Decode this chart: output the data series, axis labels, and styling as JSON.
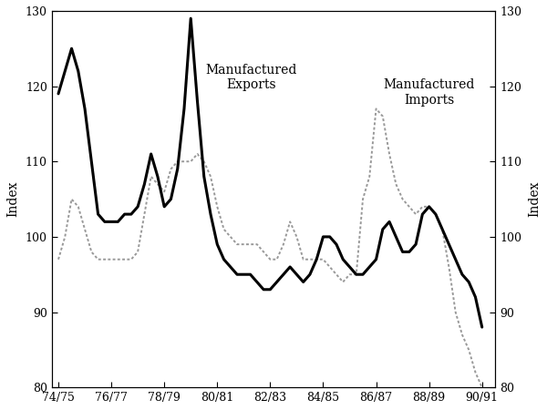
{
  "ylabel_left": "Index",
  "ylabel_right": "Index",
  "ylim": [
    80,
    130
  ],
  "yticks": [
    80,
    90,
    100,
    110,
    120,
    130
  ],
  "x_labels": [
    "74/75",
    "76/77",
    "78/79",
    "80/81",
    "82/83",
    "84/85",
    "86/87",
    "88/89",
    "90/91"
  ],
  "annotation_exports": "Manufactured\nExports",
  "annotation_imports": "Manufactured\nImports",
  "exports_x": [
    74.5,
    74.75,
    75.0,
    75.25,
    75.5,
    75.75,
    76.0,
    76.25,
    76.5,
    76.75,
    77.0,
    77.25,
    77.5,
    77.75,
    78.0,
    78.25,
    78.5,
    78.75,
    79.0,
    79.25,
    79.5,
    79.75,
    80.0,
    80.25,
    80.5,
    80.75,
    81.0,
    81.25,
    81.5,
    81.75,
    82.0,
    82.25,
    82.5,
    82.75,
    83.0,
    83.25,
    83.5,
    83.75,
    84.0,
    84.25,
    84.5,
    84.75,
    85.0,
    85.25,
    85.5,
    85.75,
    86.0,
    86.25,
    86.5,
    86.75,
    87.0,
    87.25,
    87.5,
    87.75,
    88.0,
    88.25,
    88.5,
    88.75,
    89.0,
    89.25,
    89.5,
    89.75,
    90.0,
    90.25,
    90.5
  ],
  "exports_y": [
    119,
    122,
    125,
    122,
    117,
    110,
    103,
    102,
    102,
    102,
    103,
    103,
    104,
    107,
    111,
    108,
    104,
    105,
    109,
    117,
    129,
    118,
    108,
    103,
    99,
    97,
    96,
    95,
    95,
    95,
    94,
    93,
    93,
    94,
    95,
    96,
    95,
    94,
    95,
    97,
    100,
    100,
    99,
    97,
    96,
    95,
    95,
    96,
    97,
    101,
    102,
    100,
    98,
    98,
    99,
    103,
    104,
    103,
    101,
    99,
    97,
    95,
    94,
    92,
    88
  ],
  "imports_x": [
    74.5,
    74.75,
    75.0,
    75.25,
    75.5,
    75.75,
    76.0,
    76.25,
    76.5,
    76.75,
    77.0,
    77.25,
    77.5,
    77.75,
    78.0,
    78.25,
    78.5,
    78.75,
    79.0,
    79.25,
    79.5,
    79.75,
    80.0,
    80.25,
    80.5,
    80.75,
    81.0,
    81.25,
    81.5,
    81.75,
    82.0,
    82.25,
    82.5,
    82.75,
    83.0,
    83.25,
    83.5,
    83.75,
    84.0,
    84.25,
    84.5,
    84.75,
    85.0,
    85.25,
    85.5,
    85.75,
    86.0,
    86.25,
    86.5,
    86.75,
    87.0,
    87.25,
    87.5,
    87.75,
    88.0,
    88.25,
    88.5,
    88.75,
    89.0,
    89.25,
    89.5,
    89.75,
    90.0,
    90.25,
    90.5
  ],
  "imports_y": [
    97,
    100,
    105,
    104,
    101,
    98,
    97,
    97,
    97,
    97,
    97,
    97,
    98,
    103,
    108,
    107,
    106,
    109,
    110,
    110,
    110,
    111,
    110,
    108,
    104,
    101,
    100,
    99,
    99,
    99,
    99,
    98,
    97,
    97,
    99,
    102,
    100,
    97,
    97,
    97,
    97,
    96,
    95,
    94,
    95,
    95,
    105,
    108,
    117,
    116,
    111,
    107,
    105,
    104,
    103,
    104,
    104,
    103,
    101,
    96,
    90,
    87,
    85,
    82,
    80
  ],
  "exports_color": "#000000",
  "imports_color": "#999999",
  "exports_linewidth": 2.2,
  "imports_linewidth": 1.4,
  "background_color": "#ffffff"
}
